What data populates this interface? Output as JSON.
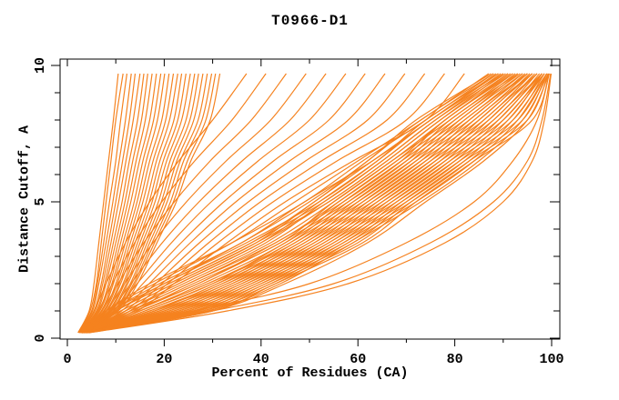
{
  "title": "T0966-D1",
  "colors": {
    "curve": "#F5821F",
    "axis": "#000000",
    "text": "#000000",
    "background": "#FFFFFF"
  },
  "chart_data": {
    "type": "line",
    "title": "T0966-D1",
    "xlabel": "Percent of Residues (CA)",
    "ylabel": "Distance Cutoff, A",
    "xlim": [
      0,
      100
    ],
    "ylim": [
      0,
      10
    ],
    "grid": false,
    "x_major_ticks": [
      0,
      20,
      40,
      60,
      80,
      100
    ],
    "x_minor_tick_step": 10,
    "y_major_ticks": [
      0,
      5,
      10
    ],
    "y_minor_tick_step": 1,
    "cutoffs": [
      0.2,
      1,
      2,
      3.5,
      5,
      6.5,
      8,
      9.7
    ],
    "curves": [
      [
        2.5,
        8,
        18,
        34,
        47,
        60,
        73,
        87
      ],
      [
        3,
        9,
        20,
        36,
        50,
        62,
        72,
        87.5
      ],
      [
        2.5,
        8,
        17,
        34,
        49,
        61,
        74,
        88
      ],
      [
        3,
        10,
        21,
        38,
        51,
        62,
        73,
        88
      ],
      [
        2.8,
        9,
        19,
        36,
        49,
        63,
        75,
        88.5
      ],
      [
        3,
        10,
        20,
        37,
        52,
        64,
        74,
        89
      ],
      [
        2.6,
        11,
        22,
        39,
        51,
        63,
        75,
        89
      ],
      [
        3,
        10,
        21,
        38,
        53,
        65,
        76,
        89.5
      ],
      [
        3.2,
        12,
        23,
        40,
        52,
        64,
        75,
        90
      ],
      [
        2.8,
        11,
        22,
        39,
        54,
        66,
        77,
        90
      ],
      [
        3,
        12,
        24,
        41,
        53,
        65,
        76,
        90.5
      ],
      [
        3.4,
        13,
        25,
        42,
        55,
        67,
        78,
        91
      ],
      [
        2.9,
        12,
        23,
        40,
        54,
        66,
        77,
        91
      ],
      [
        3,
        13,
        25,
        43,
        56,
        68,
        78,
        91.5
      ],
      [
        3.5,
        14,
        26,
        44,
        55,
        67,
        79,
        92
      ],
      [
        3,
        13,
        27,
        43,
        57,
        69,
        78,
        92
      ],
      [
        3.2,
        15,
        28,
        45,
        56,
        68,
        80,
        92.5
      ],
      [
        3,
        14,
        27,
        44,
        58,
        70,
        79,
        93
      ],
      [
        3.6,
        15,
        29,
        46,
        57,
        69,
        81,
        93
      ],
      [
        3,
        16,
        30,
        45,
        59,
        71,
        80,
        93.5
      ],
      [
        3.3,
        15,
        29,
        47,
        58,
        70,
        82,
        94
      ],
      [
        3,
        17,
        31,
        46,
        60,
        72,
        81,
        94
      ],
      [
        3.7,
        16,
        30,
        48,
        59,
        71,
        83,
        94.5
      ],
      [
        3,
        17,
        32,
        47,
        61,
        73,
        82,
        95
      ],
      [
        3.4,
        18,
        31,
        49,
        60,
        72,
        84,
        95
      ],
      [
        3,
        18,
        33,
        48,
        62,
        74,
        83,
        95
      ],
      [
        3.8,
        19,
        32,
        50,
        61,
        73,
        85,
        95.5
      ],
      [
        3,
        19,
        34,
        49,
        63,
        75,
        84,
        96
      ],
      [
        3.5,
        20,
        33,
        51,
        62,
        74,
        86,
        96
      ],
      [
        3,
        20,
        35,
        50,
        64,
        76,
        85,
        96
      ],
      [
        3.9,
        21,
        34,
        52,
        63,
        75,
        87,
        96.5
      ],
      [
        3,
        21,
        36,
        51,
        65,
        77,
        86,
        97
      ],
      [
        3.6,
        22,
        35,
        53,
        64,
        76,
        88,
        97
      ],
      [
        3,
        22,
        37,
        52,
        66,
        78,
        87,
        97
      ],
      [
        4,
        23,
        36,
        54,
        65,
        77,
        89,
        97.5
      ],
      [
        3.2,
        23,
        38,
        53,
        67,
        79,
        88,
        98
      ],
      [
        3.7,
        24,
        37,
        55,
        66,
        78,
        90,
        98
      ],
      [
        3,
        24,
        39,
        54,
        68,
        80,
        89,
        98
      ],
      [
        4.1,
        25,
        38,
        56,
        67,
        79,
        91,
        98
      ],
      [
        3.3,
        25,
        40,
        55,
        69,
        81,
        90,
        98.5
      ],
      [
        3.8,
        26,
        39,
        57,
        68,
        80,
        92,
        98.5
      ],
      [
        3,
        26,
        41,
        56,
        70,
        82,
        91,
        98.5
      ],
      [
        4.2,
        27,
        40,
        58,
        69,
        81,
        93,
        99
      ],
      [
        3.4,
        27,
        42,
        57,
        71,
        83,
        92,
        99
      ],
      [
        3.9,
        28,
        41,
        59,
        70,
        82,
        94,
        99
      ],
      [
        3,
        28,
        43,
        58,
        72,
        84,
        93,
        99
      ],
      [
        4.3,
        29,
        42,
        60,
        71,
        83,
        95,
        99.3
      ],
      [
        3.5,
        29,
        44,
        59,
        73,
        85,
        94,
        99.3
      ],
      [
        4,
        30,
        43,
        61,
        72,
        84,
        96,
        99.5
      ],
      [
        4.5,
        30,
        45,
        62,
        74,
        86,
        95,
        99.5
      ],
      [
        2.2,
        4.5,
        5.5,
        6.5,
        7.5,
        8.5,
        9.5,
        10.5
      ],
      [
        2.3,
        4.7,
        6,
        7,
        8,
        9,
        10,
        11.5
      ],
      [
        2.3,
        5,
        6.2,
        7.5,
        8.7,
        10,
        11,
        12.3
      ],
      [
        2.4,
        5.2,
        6.5,
        8,
        9.4,
        10.7,
        12,
        13.2
      ],
      [
        2.5,
        5.5,
        7,
        8.5,
        10,
        11.4,
        12.8,
        14
      ],
      [
        2.5,
        5.7,
        7.3,
        9,
        10.6,
        12.1,
        13.6,
        15
      ],
      [
        2.6,
        6,
        7.7,
        9.5,
        11.3,
        12.8,
        14.5,
        15.8
      ],
      [
        2.6,
        6.2,
        8,
        10,
        11.9,
        13.5,
        15.3,
        16.6
      ],
      [
        2.7,
        6.5,
        8.5,
        10.5,
        12.5,
        14.2,
        16.1,
        17.5
      ],
      [
        2.8,
        6.7,
        8.8,
        11,
        13.1,
        14.9,
        17,
        18.4
      ],
      [
        2.8,
        7,
        9.2,
        11.5,
        13.8,
        15.6,
        17.8,
        19.3
      ],
      [
        2.9,
        7.2,
        9.5,
        12,
        14.4,
        16.3,
        18.6,
        20.1
      ],
      [
        3,
        7.5,
        10,
        12.5,
        15,
        17,
        19.5,
        21
      ],
      [
        3,
        7.7,
        10.3,
        13,
        15.6,
        17.7,
        20.3,
        21.9
      ],
      [
        3.1,
        8,
        10.7,
        13.5,
        16.3,
        18.4,
        21.1,
        22.8
      ],
      [
        3.1,
        8.2,
        11,
        14,
        16.9,
        19.1,
        22,
        23.6
      ],
      [
        3.2,
        8.5,
        11.5,
        14.5,
        17.5,
        19.8,
        22.8,
        24.5
      ],
      [
        3.3,
        8.7,
        11.8,
        15,
        18.1,
        20.5,
        23.6,
        25.4
      ],
      [
        3.3,
        9,
        12.2,
        15.5,
        18.8,
        21.2,
        24.5,
        26.3
      ],
      [
        3.4,
        9.2,
        12.5,
        16,
        19.4,
        21.9,
        25.3,
        27.1
      ],
      [
        3.4,
        9.5,
        13,
        16.5,
        20,
        22.6,
        26.1,
        28
      ],
      [
        3.5,
        9.7,
        13.3,
        17,
        20.6,
        23.3,
        27,
        28.9
      ],
      [
        3.6,
        10,
        13.7,
        17.5,
        21.3,
        24,
        27.8,
        29.8
      ],
      [
        3.6,
        10.2,
        14,
        18,
        21.9,
        24.8,
        28.6,
        30.6
      ],
      [
        3.7,
        10.5,
        14.5,
        18.5,
        22.5,
        25.5,
        29.5,
        31.5
      ],
      [
        2.8,
        5.5,
        8,
        12,
        17,
        23,
        30,
        37
      ],
      [
        2.9,
        6.3,
        9.3,
        13.9,
        19.5,
        26.3,
        34,
        41
      ],
      [
        3,
        7.1,
        10.5,
        15.8,
        22.1,
        29.5,
        38,
        45.2
      ],
      [
        3.1,
        8,
        11.8,
        17.7,
        24.6,
        32.8,
        42,
        49.3
      ],
      [
        3.2,
        8.8,
        13.1,
        19.6,
        27.2,
        36.1,
        46,
        53.4
      ],
      [
        3.3,
        9.6,
        14.4,
        21.5,
        29.7,
        39.4,
        50,
        57.5
      ],
      [
        3.5,
        10.4,
        15.6,
        23.5,
        32.3,
        42.6,
        54,
        61.5
      ],
      [
        3.6,
        11.2,
        16.9,
        25.4,
        34.8,
        45.9,
        58,
        65.6
      ],
      [
        3.7,
        12,
        18.2,
        27.3,
        37.4,
        49.2,
        62,
        69.7
      ],
      [
        3.8,
        12.9,
        19.5,
        29.2,
        39.9,
        52.5,
        66,
        73.8
      ],
      [
        3.9,
        13.7,
        20.7,
        31.1,
        42.5,
        55.7,
        70,
        77.9
      ],
      [
        4,
        14.5,
        22,
        33,
        45,
        59,
        74,
        82
      ],
      [
        4,
        30,
        55,
        75,
        88,
        95,
        98,
        99.8
      ],
      [
        3.5,
        26,
        50,
        70,
        84,
        92,
        97,
        99.5
      ],
      [
        4.5,
        33,
        58,
        78,
        90,
        96,
        98.5,
        99.9
      ]
    ]
  }
}
